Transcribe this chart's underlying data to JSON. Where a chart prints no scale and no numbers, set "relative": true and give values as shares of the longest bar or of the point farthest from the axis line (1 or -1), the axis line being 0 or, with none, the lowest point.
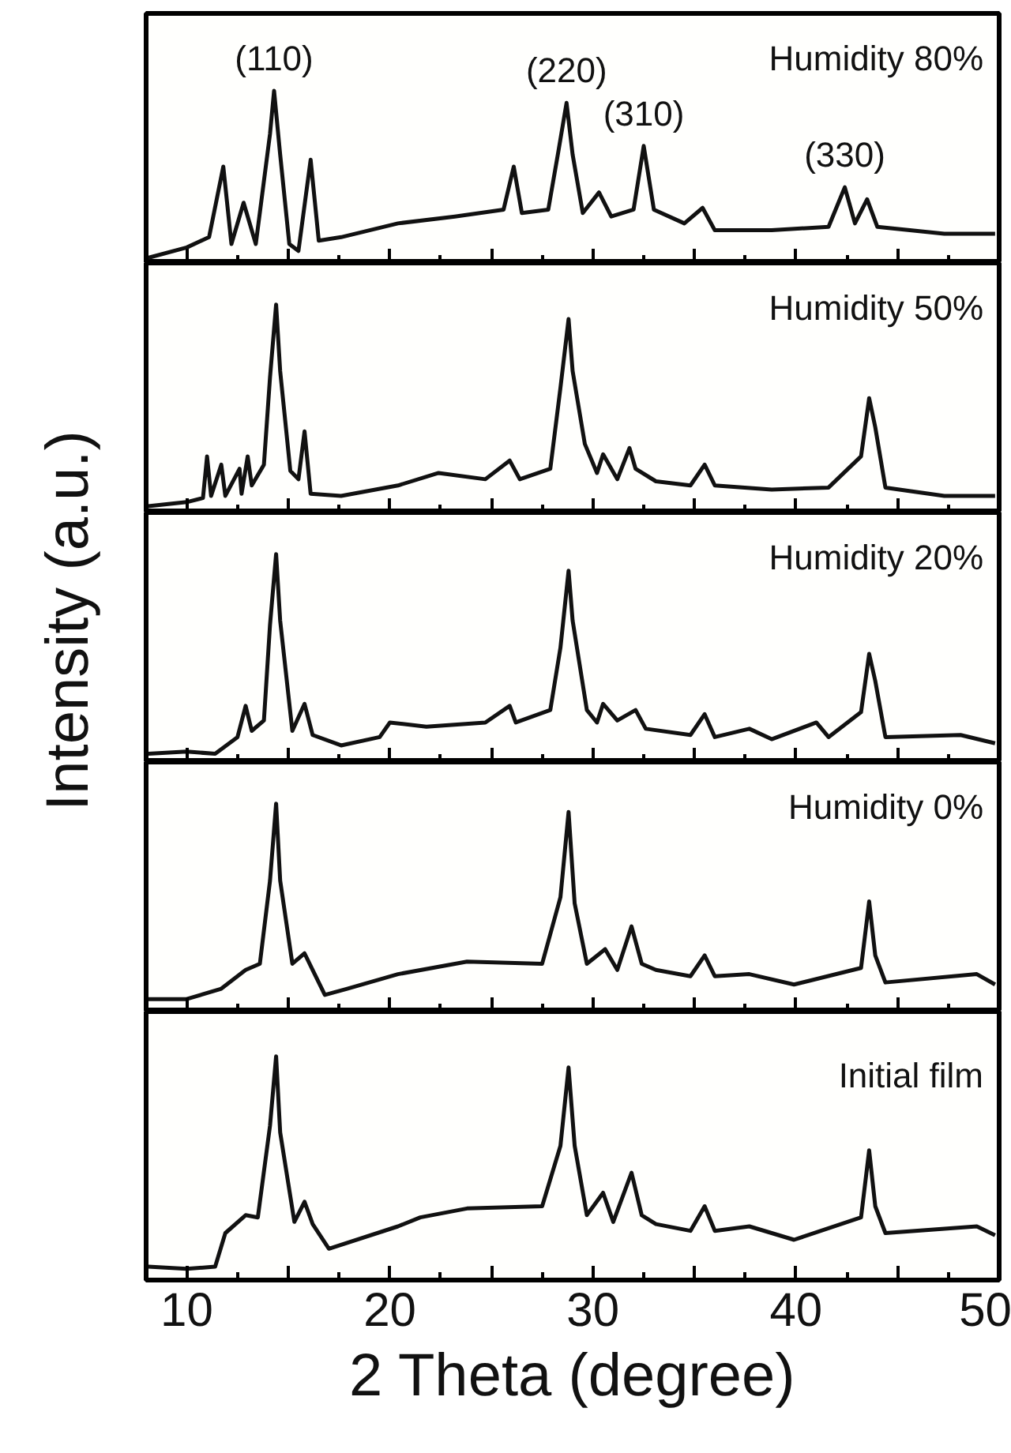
{
  "chart_data": [
    {
      "type": "line",
      "title": "Humidity 80%",
      "relative": true,
      "xlim": [
        8,
        50
      ],
      "xticks": [
        10,
        {
          "value": 15,
          "label": null
        },
        20,
        {
          "value": 25,
          "label": null
        },
        30,
        {
          "value": 35,
          "label": null
        },
        40,
        {
          "value": 45,
          "label": null
        },
        50
      ],
      "tick_labels": false,
      "annotations": [
        {
          "text": "(110)",
          "x": 14.3,
          "y": 1.0
        },
        {
          "text": "(220)",
          "x": 28.7,
          "y": 0.93
        },
        {
          "text": "(310)",
          "x": 32.5,
          "y": 0.68
        },
        {
          "text": "(330)",
          "x": 42.4,
          "y": 0.44
        }
      ],
      "series": [
        {
          "color": "#111111",
          "x": [
            8.1,
            10.0,
            11.1,
            11.8,
            12.2,
            12.8,
            13.4,
            14.1,
            14.3,
            14.6,
            15.05,
            15.5,
            16.1,
            16.5,
            17.6,
            20.4,
            23.2,
            25.6,
            26.1,
            26.5,
            27.8,
            28.3,
            28.7,
            29.0,
            29.5,
            30.3,
            30.9,
            32.0,
            32.5,
            33.0,
            34.5,
            35.4,
            36.0,
            38.8,
            41.6,
            42.4,
            42.9,
            43.5,
            44.0,
            47.3,
            49.8
          ],
          "values": [
            0.03,
            0.09,
            0.15,
            0.56,
            0.11,
            0.35,
            0.11,
            0.75,
            1.0,
            0.63,
            0.11,
            0.07,
            0.6,
            0.13,
            0.15,
            0.23,
            0.27,
            0.31,
            0.56,
            0.29,
            0.31,
            0.65,
            0.93,
            0.63,
            0.29,
            0.41,
            0.27,
            0.31,
            0.68,
            0.31,
            0.23,
            0.32,
            0.19,
            0.19,
            0.21,
            0.44,
            0.23,
            0.37,
            0.21,
            0.17,
            0.17
          ]
        }
      ]
    },
    {
      "type": "line",
      "title": "Humidity 50%",
      "relative": true,
      "xlim": [
        8,
        50
      ],
      "xticks": [
        10,
        {
          "value": 15,
          "label": null
        },
        20,
        {
          "value": 25,
          "label": null
        },
        30,
        {
          "value": 35,
          "label": null
        },
        40,
        {
          "value": 45,
          "label": null
        },
        50
      ],
      "tick_labels": false,
      "series": [
        {
          "color": "#111111",
          "x": [
            8.1,
            10.0,
            10.8,
            11.0,
            11.2,
            11.7,
            11.9,
            12.6,
            12.7,
            13.0,
            13.2,
            13.8,
            14.1,
            14.4,
            14.6,
            15.1,
            15.5,
            15.8,
            16.1,
            17.6,
            20.4,
            22.4,
            24.7,
            25.9,
            26.4,
            27.9,
            28.4,
            28.8,
            29.0,
            29.6,
            30.2,
            30.5,
            31.2,
            31.8,
            32.1,
            33.1,
            34.8,
            35.5,
            36.0,
            38.8,
            41.6,
            43.2,
            43.6,
            43.9,
            44.4,
            47.3,
            49.8
          ],
          "values": [
            0.03,
            0.05,
            0.07,
            0.27,
            0.08,
            0.23,
            0.08,
            0.21,
            0.09,
            0.27,
            0.13,
            0.23,
            0.65,
            1.0,
            0.68,
            0.2,
            0.16,
            0.39,
            0.09,
            0.08,
            0.13,
            0.19,
            0.16,
            0.25,
            0.16,
            0.21,
            0.6,
            0.93,
            0.68,
            0.33,
            0.19,
            0.28,
            0.16,
            0.31,
            0.21,
            0.15,
            0.13,
            0.23,
            0.13,
            0.11,
            0.12,
            0.27,
            0.55,
            0.41,
            0.12,
            0.08,
            0.08
          ]
        }
      ]
    },
    {
      "type": "line",
      "title": "Humidity 20%",
      "ylabel": "Intensity (a.u.)",
      "relative": true,
      "xlim": [
        8,
        50
      ],
      "xticks": [
        10,
        {
          "value": 15,
          "label": null
        },
        20,
        {
          "value": 25,
          "label": null
        },
        30,
        {
          "value": 35,
          "label": null
        },
        40,
        {
          "value": 45,
          "label": null
        },
        50
      ],
      "tick_labels": false,
      "series": [
        {
          "color": "#111111",
          "x": [
            8.1,
            10.0,
            11.4,
            12.5,
            12.9,
            13.2,
            13.8,
            14.1,
            14.4,
            14.6,
            15.2,
            15.8,
            16.2,
            17.6,
            19.5,
            20.0,
            21.8,
            24.7,
            25.9,
            26.2,
            27.9,
            28.4,
            28.8,
            29.0,
            29.7,
            30.2,
            30.5,
            31.2,
            32.1,
            32.6,
            34.8,
            35.5,
            36.0,
            37.7,
            38.8,
            41.0,
            41.6,
            43.2,
            43.6,
            43.9,
            44.4,
            48.1,
            49.8
          ],
          "values": [
            0.04,
            0.05,
            0.04,
            0.12,
            0.27,
            0.15,
            0.2,
            0.66,
            1.0,
            0.68,
            0.15,
            0.28,
            0.13,
            0.08,
            0.12,
            0.19,
            0.17,
            0.19,
            0.27,
            0.19,
            0.25,
            0.55,
            0.92,
            0.68,
            0.25,
            0.19,
            0.28,
            0.2,
            0.25,
            0.16,
            0.13,
            0.23,
            0.12,
            0.16,
            0.11,
            0.19,
            0.12,
            0.24,
            0.52,
            0.39,
            0.12,
            0.13,
            0.09
          ]
        }
      ]
    },
    {
      "type": "line",
      "title": "Humidity 0%",
      "relative": true,
      "xlim": [
        8,
        50
      ],
      "xticks": [
        10,
        {
          "value": 15,
          "label": null
        },
        20,
        {
          "value": 25,
          "label": null
        },
        30,
        {
          "value": 35,
          "label": null
        },
        40,
        {
          "value": 45,
          "label": null
        },
        50
      ],
      "tick_labels": false,
      "series": [
        {
          "color": "#111111",
          "x": [
            8.1,
            10.0,
            11.7,
            12.9,
            13.6,
            14.1,
            14.4,
            14.6,
            15.2,
            15.8,
            16.2,
            16.8,
            17.9,
            20.4,
            23.8,
            27.5,
            28.4,
            28.8,
            29.1,
            29.7,
            30.6,
            31.2,
            31.9,
            32.4,
            33.1,
            34.8,
            35.5,
            36.0,
            37.7,
            39.9,
            43.2,
            43.6,
            43.9,
            44.4,
            48.9,
            49.8
          ],
          "values": [
            0.06,
            0.06,
            0.11,
            0.2,
            0.23,
            0.63,
            1.0,
            0.63,
            0.23,
            0.28,
            0.2,
            0.08,
            0.11,
            0.18,
            0.24,
            0.23,
            0.55,
            0.96,
            0.52,
            0.23,
            0.3,
            0.2,
            0.41,
            0.23,
            0.2,
            0.17,
            0.27,
            0.17,
            0.18,
            0.13,
            0.21,
            0.53,
            0.27,
            0.14,
            0.18,
            0.13
          ]
        }
      ]
    },
    {
      "type": "line",
      "title": "Initial film",
      "xlabel": "2 Theta (degree)",
      "relative": true,
      "xlim": [
        8,
        50
      ],
      "xticks": [
        10,
        {
          "value": 15,
          "label": null
        },
        20,
        {
          "value": 25,
          "label": null
        },
        30,
        {
          "value": 35,
          "label": null
        },
        40,
        {
          "value": 45,
          "label": null
        },
        50
      ],
      "tick_labels": "x",
      "series": [
        {
          "color": "#111111",
          "x": [
            8.1,
            10.0,
            11.4,
            11.9,
            12.9,
            13.5,
            14.1,
            14.4,
            14.6,
            15.3,
            15.8,
            16.2,
            17.0,
            20.4,
            21.5,
            23.8,
            27.5,
            28.4,
            28.8,
            29.1,
            29.7,
            30.5,
            31.0,
            31.9,
            32.4,
            33.1,
            34.8,
            35.5,
            36.0,
            37.7,
            39.9,
            43.2,
            43.6,
            43.9,
            44.4,
            48.9,
            49.8
          ],
          "values": [
            0.06,
            0.05,
            0.06,
            0.21,
            0.29,
            0.28,
            0.69,
            1.0,
            0.66,
            0.26,
            0.35,
            0.25,
            0.14,
            0.24,
            0.28,
            0.32,
            0.33,
            0.6,
            0.95,
            0.6,
            0.29,
            0.39,
            0.26,
            0.48,
            0.29,
            0.25,
            0.22,
            0.33,
            0.22,
            0.24,
            0.18,
            0.28,
            0.58,
            0.33,
            0.21,
            0.24,
            0.2
          ]
        }
      ]
    }
  ]
}
